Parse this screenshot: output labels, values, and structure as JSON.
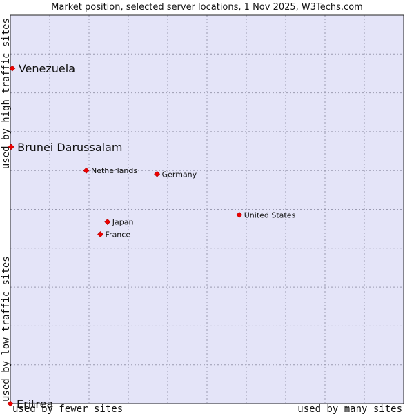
{
  "chart_data": {
    "type": "scatter",
    "title": "Market position, selected server locations, 1 Nov 2025, W3Techs.com",
    "xlabel_left": "used by fewer sites",
    "xlabel_right": "used by many sites",
    "ylabel_bottom": "used by low traffic sites",
    "ylabel_top": "used by high traffic sites",
    "xlim": [
      0,
      100
    ],
    "ylim": [
      0,
      100
    ],
    "grid": true,
    "colors": {
      "plot_bg": "#e4e4f8",
      "grid": "#9a9ab0",
      "border": "#222222",
      "marker": "#ee0000",
      "marker_stroke": "#aa0000"
    },
    "points": [
      {
        "label": "Venezuela",
        "x": 0.5,
        "y": 86.3,
        "size": "large"
      },
      {
        "label": "Brunei Darussalam",
        "x": 0.2,
        "y": 66.1,
        "size": "large"
      },
      {
        "label": "Netherlands",
        "x": 19.3,
        "y": 60.0,
        "size": "small"
      },
      {
        "label": "Germany",
        "x": 37.3,
        "y": 59.1,
        "size": "small"
      },
      {
        "label": "United States",
        "x": 58.2,
        "y": 48.6,
        "size": "small"
      },
      {
        "label": "Japan",
        "x": 24.7,
        "y": 46.8,
        "size": "small"
      },
      {
        "label": "France",
        "x": 22.9,
        "y": 43.6,
        "size": "small"
      },
      {
        "label": "Eritrea",
        "x": 0.0,
        "y": 0.0,
        "size": "large"
      }
    ]
  }
}
